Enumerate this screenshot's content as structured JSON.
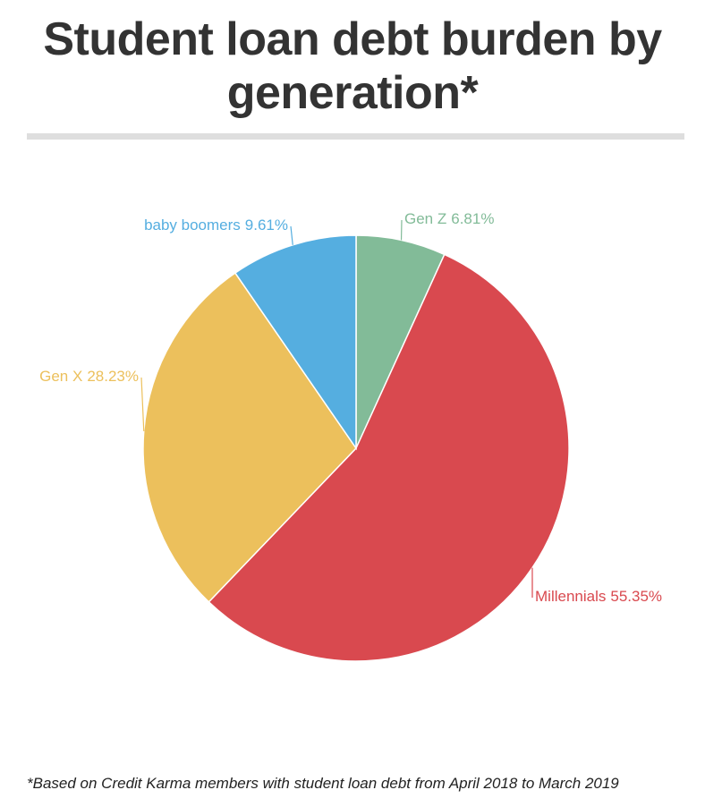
{
  "chart_data": {
    "type": "pie",
    "title": "Student loan debt burden by generation*",
    "categories": [
      "Gen Z",
      "Millennials",
      "Gen X",
      "baby boomers"
    ],
    "values": [
      6.81,
      55.35,
      28.23,
      9.61
    ],
    "value_labels": [
      "6.81%",
      "55.35%",
      "28.23%",
      "9.61%"
    ],
    "colors": [
      "#82bb98",
      "#d9494f",
      "#ecc05c",
      "#55aee0"
    ],
    "footnote": "*Based on Credit Karma members with student loan debt from April 2018 to March 2019"
  }
}
